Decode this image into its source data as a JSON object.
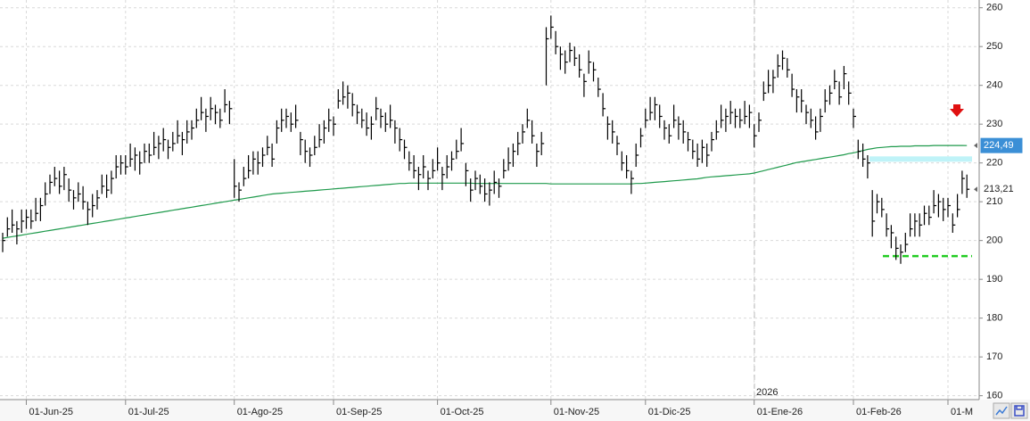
{
  "chart_data": {
    "type": "ohlc",
    "ylim": [
      159,
      262
    ],
    "yticks": [
      160,
      170,
      180,
      190,
      200,
      210,
      220,
      230,
      240,
      250,
      260
    ],
    "grid": true,
    "year_label": "2026",
    "categories": [
      null,
      null,
      null,
      null,
      null,
      "01-Jun-25",
      null,
      null,
      null,
      null,
      null,
      null,
      null,
      null,
      null,
      null,
      null,
      null,
      null,
      null,
      null,
      null,
      null,
      null,
      null,
      null,
      "01-Jul-25",
      null,
      null,
      null,
      null,
      null,
      null,
      null,
      null,
      null,
      null,
      null,
      null,
      null,
      null,
      null,
      null,
      null,
      null,
      null,
      null,
      null,
      null,
      "01-Ago-25",
      null,
      null,
      null,
      null,
      null,
      null,
      null,
      null,
      null,
      null,
      null,
      null,
      null,
      null,
      null,
      null,
      null,
      null,
      null,
      null,
      "01-Sep-25",
      null,
      null,
      null,
      null,
      null,
      null,
      null,
      null,
      null,
      null,
      null,
      null,
      null,
      null,
      null,
      null,
      null,
      null,
      null,
      null,
      null,
      "01-Oct-25",
      null,
      null,
      null,
      null,
      null,
      null,
      null,
      null,
      null,
      null,
      null,
      null,
      null,
      null,
      null,
      null,
      null,
      null,
      null,
      null,
      null,
      null,
      null,
      "01-Nov-25",
      null,
      null,
      null,
      null,
      null,
      null,
      null,
      null,
      null,
      null,
      null,
      null,
      null,
      null,
      null,
      null,
      null,
      null,
      null,
      "01-Dic-25",
      null,
      null,
      null,
      null,
      null,
      null,
      null,
      null,
      null,
      null,
      null,
      null,
      null,
      null,
      null,
      null,
      null,
      null,
      null,
      null,
      null,
      null,
      "01-Ene-26",
      null,
      null,
      null,
      null,
      null,
      null,
      null,
      null,
      null,
      null,
      null,
      null,
      null,
      null,
      null,
      null,
      null,
      null,
      null,
      null,
      "01-Feb-26",
      null,
      null,
      null,
      null,
      null,
      null,
      null,
      null,
      null,
      null,
      null,
      null,
      null,
      null,
      null,
      null,
      null,
      null,
      null,
      "01-M",
      null,
      null,
      null,
      null
    ],
    "color": "#000000",
    "high": [
      202,
      206,
      208,
      205,
      208,
      208,
      208,
      211,
      211,
      215,
      217,
      219,
      218,
      219,
      216,
      213,
      215,
      214,
      210,
      212,
      213,
      217,
      217,
      218,
      222,
      222,
      222,
      225,
      224,
      223,
      225,
      225,
      228,
      227,
      229,
      226,
      228,
      231,
      228,
      231,
      231,
      234,
      237,
      234,
      237,
      235,
      234,
      239,
      236,
      221,
      215,
      219,
      222,
      223,
      223,
      224,
      227,
      225,
      231,
      234,
      234,
      233,
      235,
      228,
      226,
      224,
      227,
      230,
      231,
      234,
      232,
      239,
      241,
      240,
      238,
      235,
      234,
      233,
      232,
      237,
      234,
      233,
      235,
      231,
      229,
      226,
      223,
      222,
      219,
      222,
      218,
      221,
      224,
      219,
      222,
      223,
      226,
      229,
      220,
      216,
      218,
      217,
      216,
      215,
      218,
      216,
      221,
      224,
      225,
      228,
      230,
      234,
      231,
      225,
      228,
      255,
      258,
      254,
      250,
      249,
      251,
      250,
      248,
      243,
      249,
      246,
      242,
      238,
      232,
      231,
      227,
      223,
      222,
      218,
      225,
      229,
      234,
      237,
      237,
      235,
      231,
      230,
      235,
      232,
      231,
      228,
      226,
      225,
      226,
      225,
      228,
      231,
      235,
      234,
      236,
      234,
      234,
      236,
      235,
      230,
      233,
      241,
      244,
      244,
      248,
      249,
      247,
      243,
      239,
      239,
      235,
      234,
      232,
      234,
      239,
      240,
      244,
      241,
      245,
      241,
      234,
      226,
      225,
      222,
      213,
      212,
      211,
      207,
      204,
      201,
      199,
      202,
      207,
      207,
      207,
      209,
      209,
      213,
      212,
      211,
      211,
      207,
      212,
      218,
      217
    ],
    "low": [
      197,
      201,
      202,
      199,
      202,
      203,
      203,
      205,
      205,
      209,
      212,
      214,
      212,
      213,
      210,
      208,
      210,
      208,
      204,
      206,
      208,
      212,
      211,
      212,
      216,
      217,
      217,
      219,
      218,
      217,
      220,
      220,
      222,
      221,
      223,
      221,
      223,
      225,
      222,
      225,
      226,
      229,
      231,
      228,
      231,
      230,
      229,
      233,
      230,
      211,
      210,
      214,
      216,
      217,
      217,
      219,
      222,
      219,
      225,
      228,
      229,
      228,
      229,
      222,
      220,
      219,
      222,
      224,
      225,
      228,
      227,
      234,
      235,
      234,
      232,
      230,
      229,
      227,
      226,
      231,
      229,
      228,
      229,
      225,
      223,
      221,
      218,
      216,
      213,
      216,
      213,
      216,
      218,
      213,
      216,
      218,
      221,
      223,
      214,
      210,
      213,
      212,
      210,
      209,
      212,
      211,
      216,
      218,
      219,
      222,
      225,
      229,
      225,
      219,
      222,
      240,
      252,
      248,
      244,
      243,
      246,
      245,
      242,
      237,
      243,
      241,
      237,
      232,
      226,
      225,
      222,
      218,
      216,
      212,
      219,
      224,
      229,
      231,
      231,
      229,
      226,
      225,
      229,
      226,
      225,
      223,
      221,
      219,
      220,
      219,
      223,
      226,
      229,
      228,
      230,
      229,
      229,
      230,
      229,
      224,
      228,
      236,
      238,
      238,
      242,
      244,
      242,
      237,
      233,
      233,
      230,
      229,
      226,
      228,
      233,
      235,
      239,
      235,
      239,
      235,
      229,
      221,
      219,
      216,
      201,
      207,
      206,
      201,
      198,
      195,
      194,
      197,
      201,
      201,
      201,
      204,
      204,
      207,
      206,
      205,
      206,
      202,
      206,
      212,
      211
    ],
    "close": [
      200,
      203,
      204,
      203,
      205,
      206,
      205,
      207,
      209,
      212,
      215,
      216,
      214,
      217,
      213,
      211,
      212,
      210,
      208,
      209,
      211,
      214,
      213,
      216,
      219,
      220,
      219,
      221,
      222,
      220,
      223,
      222,
      224,
      225,
      226,
      224,
      225,
      227,
      226,
      228,
      229,
      231,
      233,
      232,
      234,
      233,
      231,
      235,
      234,
      214,
      213,
      216,
      218,
      221,
      220,
      222,
      224,
      221,
      229,
      231,
      232,
      230,
      231,
      226,
      223,
      222,
      224,
      226,
      229,
      231,
      230,
      236,
      237,
      238,
      235,
      233,
      231,
      229,
      230,
      234,
      232,
      230,
      231,
      229,
      226,
      224,
      220,
      218,
      217,
      219,
      216,
      218,
      220,
      217,
      219,
      221,
      223,
      225,
      218,
      213,
      216,
      214,
      212,
      213,
      215,
      214,
      218,
      220,
      223,
      225,
      228,
      231,
      227,
      223,
      225,
      252,
      255,
      250,
      248,
      246,
      249,
      247,
      244,
      241,
      246,
      244,
      239,
      234,
      230,
      228,
      225,
      220,
      218,
      216,
      222,
      227,
      231,
      233,
      235,
      232,
      229,
      227,
      231,
      230,
      228,
      226,
      223,
      221,
      224,
      222,
      226,
      228,
      231,
      232,
      233,
      232,
      231,
      232,
      233,
      227,
      231,
      238,
      240,
      242,
      245,
      247,
      244,
      239,
      237,
      236,
      233,
      231,
      228,
      232,
      236,
      238,
      241,
      237,
      243,
      238,
      232,
      223,
      221,
      220,
      205,
      210,
      208,
      203,
      202,
      198,
      197,
      199,
      203,
      205,
      204,
      207,
      206,
      209,
      210,
      208,
      209,
      204,
      208,
      216,
      213.21
    ],
    "ma": {
      "color": "#1f9a4c",
      "values": [
        200.6,
        200.8,
        201.0,
        201.2,
        201.4,
        201.6,
        201.8,
        202.0,
        202.2,
        202.4,
        202.6,
        202.8,
        203.0,
        203.2,
        203.4,
        203.6,
        203.8,
        204.0,
        204.2,
        204.4,
        204.6,
        204.8,
        205.0,
        205.2,
        205.4,
        205.6,
        205.8,
        206.0,
        206.2,
        206.4,
        206.6,
        206.8,
        207.0,
        207.2,
        207.4,
        207.6,
        207.8,
        208.0,
        208.2,
        208.4,
        208.6,
        208.8,
        209.0,
        209.2,
        209.4,
        209.6,
        209.8,
        210.0,
        210.2,
        210.4,
        210.6,
        210.8,
        211.0,
        211.2,
        211.4,
        211.6,
        211.8,
        212.0,
        212.1,
        212.2,
        212.3,
        212.4,
        212.5,
        212.6,
        212.7,
        212.8,
        212.9,
        213.0,
        213.1,
        213.2,
        213.3,
        213.4,
        213.5,
        213.6,
        213.7,
        213.8,
        213.9,
        214.0,
        214.1,
        214.2,
        214.3,
        214.4,
        214.5,
        214.6,
        214.7,
        214.7,
        214.8,
        214.8,
        214.8,
        214.8,
        214.8,
        214.8,
        214.8,
        214.8,
        214.8,
        214.8,
        214.8,
        214.8,
        214.8,
        214.8,
        214.7,
        214.7,
        214.7,
        214.7,
        214.7,
        214.7,
        214.7,
        214.7,
        214.7,
        214.7,
        214.7,
        214.7,
        214.7,
        214.7,
        214.7,
        214.7,
        214.6,
        214.6,
        214.6,
        214.6,
        214.6,
        214.6,
        214.6,
        214.6,
        214.6,
        214.6,
        214.6,
        214.6,
        214.6,
        214.6,
        214.6,
        214.6,
        214.6,
        214.6,
        214.7,
        214.7,
        214.8,
        214.9,
        215.0,
        215.1,
        215.2,
        215.3,
        215.4,
        215.5,
        215.6,
        215.7,
        215.8,
        215.9,
        216.1,
        216.3,
        216.4,
        216.5,
        216.6,
        216.7,
        216.8,
        216.9,
        217.0,
        217.1,
        217.2,
        217.4,
        217.7,
        218.0,
        218.3,
        218.6,
        218.9,
        219.2,
        219.5,
        219.8,
        220.1,
        220.3,
        220.5,
        220.7,
        220.9,
        221.1,
        221.3,
        221.5,
        221.7,
        221.9,
        222.1,
        222.4,
        222.6,
        222.9,
        223.2,
        223.5,
        223.7,
        223.9,
        224.0,
        224.1,
        224.2,
        224.2,
        224.3,
        224.3,
        224.3,
        224.4,
        224.4,
        224.4,
        224.4,
        224.5,
        224.5,
        224.5,
        224.5,
        224.5,
        224.5,
        224.5,
        224.49
      ]
    },
    "levels": [
      {
        "value": 221,
        "color": "#bff3f8"
      },
      {
        "value": 196,
        "color": "#22cc22"
      }
    ],
    "price_labels": [
      {
        "value": 224.49,
        "label": "224,49",
        "color": "#3b8fd6"
      },
      {
        "value": 213.21,
        "label": "213,21",
        "color": "#ffffff"
      }
    ]
  }
}
